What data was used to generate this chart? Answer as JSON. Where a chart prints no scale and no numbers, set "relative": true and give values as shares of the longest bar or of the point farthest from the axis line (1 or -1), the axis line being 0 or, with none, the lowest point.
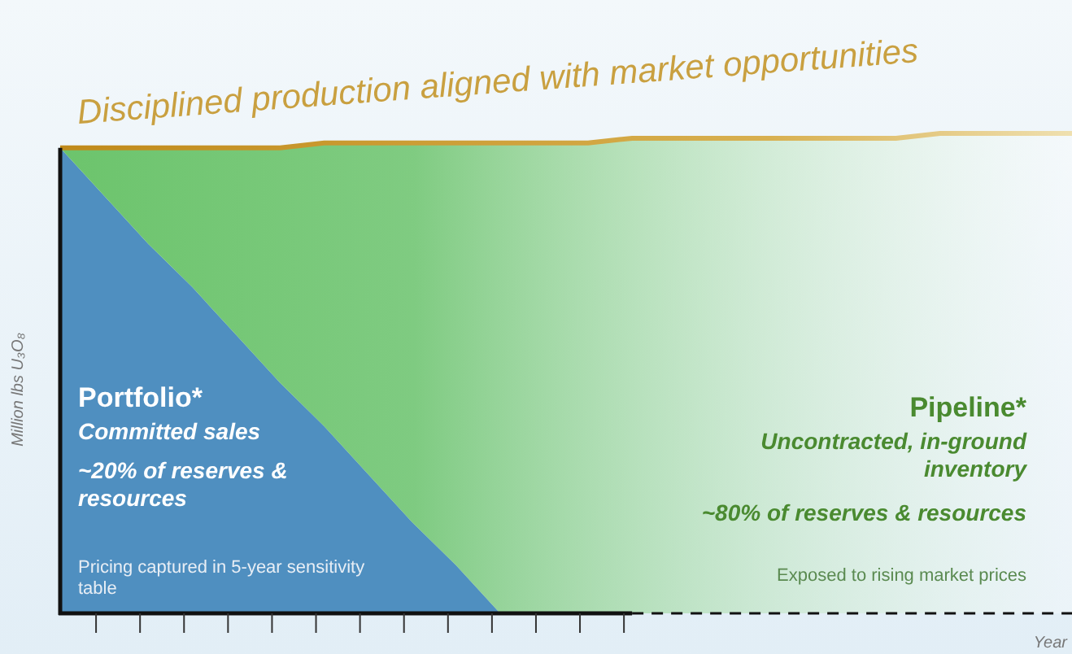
{
  "chart_data": {
    "type": "area",
    "stacked": true,
    "relative": true,
    "title": "Disciplined production aligned with market opportunities",
    "ylabel": "Million lbs U₃O₈",
    "xlabel": "Year",
    "categories": [
      null,
      null,
      null,
      null,
      null,
      null,
      null,
      null,
      null,
      null,
      null,
      null,
      null,
      null,
      null,
      null,
      null,
      null,
      null,
      null,
      null,
      null,
      null,
      null
    ],
    "series": [
      {
        "name": "Portfolio*",
        "color": "#4f8fc0",
        "values": [
          0.97,
          0.87,
          0.77,
          0.68,
          0.58,
          0.48,
          0.39,
          0.29,
          0.19,
          0.1,
          0,
          0,
          0,
          0,
          0,
          0,
          0,
          0,
          0,
          0,
          0,
          0,
          0,
          0
        ]
      },
      {
        "name": "Pipeline*",
        "color": "#6cc46c",
        "values": [
          0,
          0.1,
          0.2,
          0.29,
          0.39,
          0.49,
          0.59,
          0.69,
          0.79,
          0.88,
          0.98,
          0.98,
          0.98,
          0.99,
          0.99,
          0.99,
          0.99,
          0.99,
          0.99,
          0.99,
          1,
          1,
          1,
          1
        ]
      }
    ],
    "annotations": [
      "Committed sales",
      "~20% of reserves & resources",
      "Pricing captured in 5-year sensitivity table",
      "Uncontracted, in-ground inventory",
      "~80% of reserves & resources",
      "Exposed to rising market prices"
    ]
  }
}
